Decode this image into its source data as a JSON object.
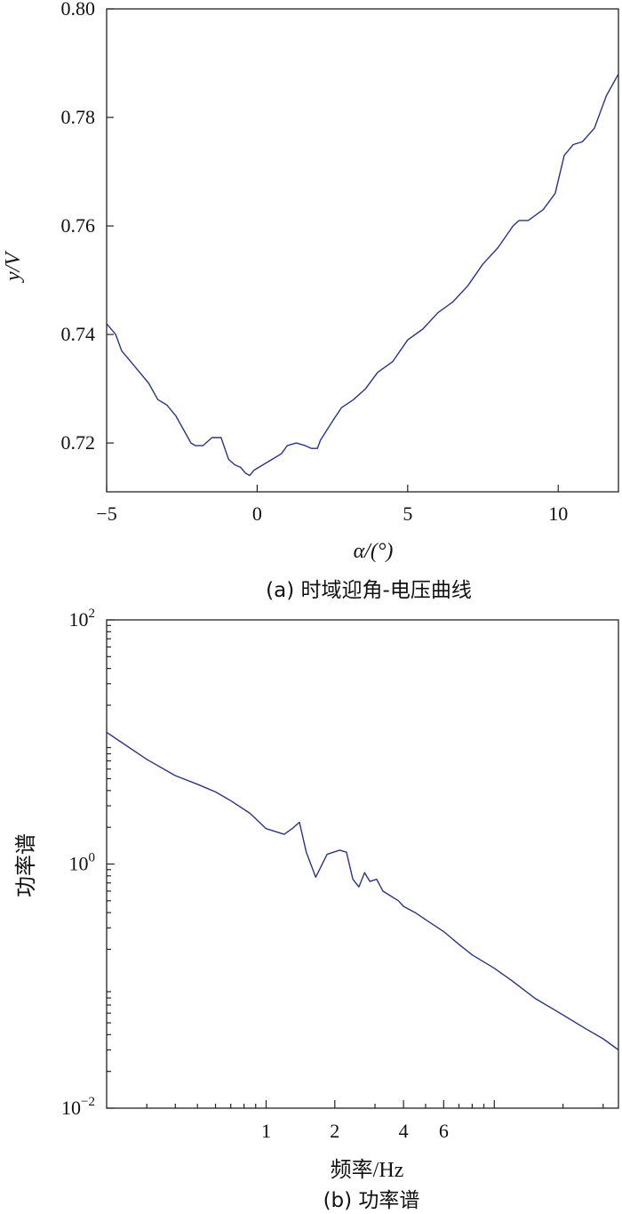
{
  "chart_data": [
    {
      "type": "line",
      "caption": "(a) 时域迎角-电压曲线",
      "xlabel": "α/(°)",
      "ylabel": "y/V",
      "xlim": [
        -5,
        12
      ],
      "ylim": [
        0.711,
        0.8
      ],
      "xticks": [
        -5,
        0,
        5,
        10
      ],
      "xtick_labels": [
        "−5",
        "0",
        "5",
        "10"
      ],
      "yticks": [
        0.72,
        0.74,
        0.76,
        0.78,
        0.8
      ],
      "ytick_labels": [
        "0.72",
        "0.74",
        "0.76",
        "0.78",
        "0.80"
      ],
      "grid": false,
      "series": [
        {
          "color": "#2b3580",
          "x": [
            -5.0,
            -4.7,
            -4.5,
            -4.2,
            -3.9,
            -3.6,
            -3.3,
            -3.0,
            -2.7,
            -2.4,
            -2.2,
            -2.05,
            -1.8,
            -1.5,
            -1.2,
            -0.95,
            -0.75,
            -0.55,
            -0.4,
            -0.25,
            -0.1,
            0.2,
            0.5,
            0.8,
            1.0,
            1.3,
            1.6,
            1.8,
            2.0,
            2.1,
            2.5,
            2.8,
            3.2,
            3.6,
            4.0,
            4.5,
            5.0,
            5.5,
            6.0,
            6.5,
            7.0,
            7.5,
            8.0,
            8.5,
            8.7,
            9.0,
            9.5,
            9.9,
            10.2,
            10.5,
            10.8,
            11.2,
            11.6,
            12.0
          ],
          "y": [
            0.742,
            0.74,
            0.737,
            0.735,
            0.733,
            0.731,
            0.728,
            0.727,
            0.725,
            0.722,
            0.72,
            0.7195,
            0.7195,
            0.721,
            0.721,
            0.717,
            0.716,
            0.7155,
            0.7145,
            0.714,
            0.715,
            0.716,
            0.717,
            0.718,
            0.7195,
            0.72,
            0.7195,
            0.719,
            0.719,
            0.7205,
            0.724,
            0.7265,
            0.728,
            0.73,
            0.733,
            0.735,
            0.739,
            0.741,
            0.744,
            0.746,
            0.749,
            0.753,
            0.756,
            0.76,
            0.761,
            0.761,
            0.763,
            0.766,
            0.773,
            0.775,
            0.7755,
            0.778,
            0.784,
            0.788
          ]
        }
      ]
    },
    {
      "type": "line",
      "caption": "(b) 功率谱",
      "xlabel": "频率/Hz",
      "ylabel": "功率谱",
      "xscale": "log",
      "yscale": "log",
      "xlim": [
        0.2,
        35
      ],
      "ylim": [
        0.01,
        100
      ],
      "xticks": [
        1,
        2,
        4,
        6
      ],
      "xtick_labels": [
        "1",
        "2",
        "4",
        "6"
      ],
      "yticks": [
        0.01,
        1,
        100
      ],
      "ytick_labels": [
        {
          "base": "10",
          "exp": "−2"
        },
        {
          "base": "10",
          "exp": "0"
        },
        {
          "base": "10",
          "exp": "2"
        }
      ],
      "grid": false,
      "series": [
        {
          "color": "#2b3580",
          "x": [
            0.2,
            0.3,
            0.4,
            0.5,
            0.6,
            0.7,
            0.85,
            1.0,
            1.2,
            1.3,
            1.4,
            1.5,
            1.65,
            1.85,
            2.1,
            2.25,
            2.4,
            2.55,
            2.7,
            2.85,
            3.05,
            3.25,
            3.5,
            3.8,
            4.0,
            4.5,
            5.0,
            6.0,
            7.0,
            8.0,
            10.0,
            12.0,
            15.0,
            20.0,
            25.0,
            30.0,
            35.0
          ],
          "y": [
            12.0,
            7.2,
            5.3,
            4.5,
            3.9,
            3.3,
            2.6,
            1.95,
            1.75,
            1.95,
            2.2,
            1.25,
            0.78,
            1.2,
            1.3,
            1.25,
            0.75,
            0.65,
            0.85,
            0.72,
            0.75,
            0.6,
            0.55,
            0.5,
            0.45,
            0.4,
            0.35,
            0.28,
            0.22,
            0.18,
            0.14,
            0.11,
            0.08,
            0.058,
            0.045,
            0.037,
            0.03
          ]
        }
      ]
    }
  ]
}
